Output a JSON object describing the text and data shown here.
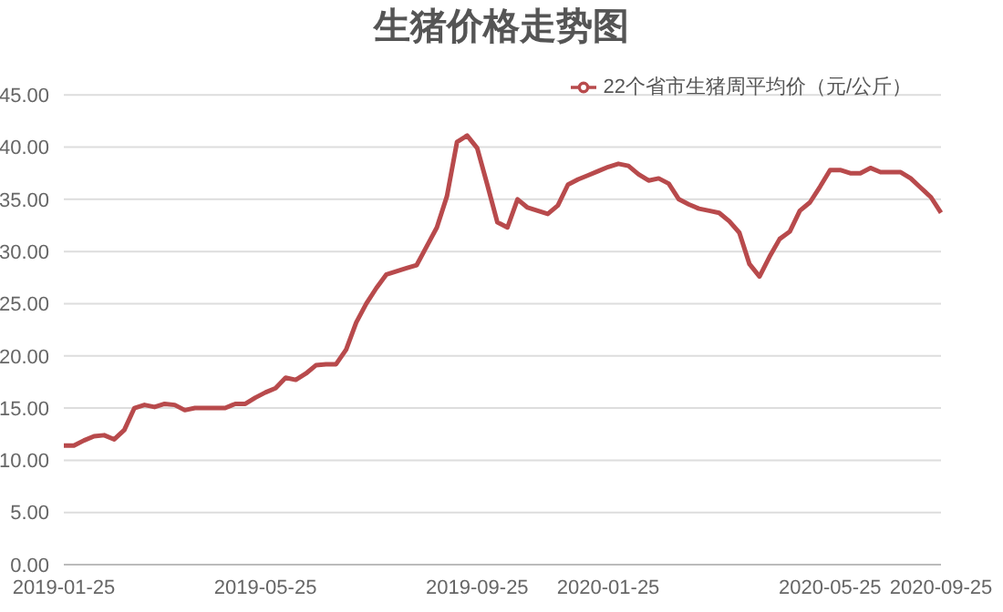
{
  "chart_data": {
    "type": "line",
    "title": "生猪价格走势图",
    "categories": [
      "2019-01-25",
      null,
      null,
      null,
      null,
      null,
      null,
      null,
      null,
      null,
      null,
      null,
      null,
      null,
      null,
      null,
      null,
      null,
      null,
      null,
      "2019-05-25",
      null,
      null,
      null,
      null,
      null,
      null,
      null,
      null,
      null,
      null,
      null,
      null,
      null,
      null,
      null,
      null,
      null,
      null,
      null,
      null,
      "2019-09-25",
      null,
      null,
      null,
      null,
      null,
      null,
      null,
      null,
      null,
      null,
      null,
      null,
      "2020-01-25",
      null,
      null,
      null,
      null,
      null,
      null,
      null,
      null,
      null,
      null,
      null,
      null,
      null,
      null,
      null,
      null,
      null,
      null,
      null,
      null,
      null,
      "2020-05-25",
      null,
      null,
      null,
      null,
      null,
      null,
      null,
      null,
      null,
      null,
      "2020-09-25"
    ],
    "series": [
      {
        "name": "22个省市生猪周平均价（元/公斤）",
        "color": "#b84a4c",
        "values": [
          11.4,
          11.4,
          11.9,
          12.3,
          12.4,
          12.0,
          12.9,
          15.0,
          15.3,
          15.1,
          15.4,
          15.3,
          14.8,
          15.0,
          15.0,
          15.0,
          15.0,
          15.4,
          15.4,
          16.0,
          16.5,
          16.9,
          17.9,
          17.7,
          18.3,
          19.1,
          19.2,
          19.2,
          20.6,
          23.2,
          25.0,
          26.5,
          27.8,
          28.1,
          28.4,
          28.7,
          30.5,
          32.3,
          35.3,
          40.5,
          41.1,
          39.9,
          36.4,
          32.8,
          32.3,
          35.0,
          34.2,
          33.9,
          33.6,
          34.4,
          36.4,
          36.9,
          37.3,
          37.7,
          38.1,
          38.4,
          38.2,
          37.4,
          36.8,
          37.0,
          36.5,
          35.0,
          34.5,
          34.1,
          33.9,
          33.7,
          32.9,
          31.8,
          28.8,
          27.6,
          29.5,
          31.2,
          31.9,
          33.9,
          34.7,
          36.2,
          37.8,
          37.8,
          37.5,
          37.5,
          38.0,
          37.6,
          37.6,
          37.6,
          37.0,
          36.1,
          35.2,
          33.7
        ]
      }
    ],
    "ylim": [
      0,
      45
    ],
    "yticks": [
      {
        "value": 0,
        "label": "0.00"
      },
      {
        "value": 5,
        "label": "5.00"
      },
      {
        "value": 10,
        "label": "10.00"
      },
      {
        "value": 15,
        "label": "15.00"
      },
      {
        "value": 20,
        "label": "20.00"
      },
      {
        "value": 25,
        "label": "25.00"
      },
      {
        "value": 30,
        "label": "30.00"
      },
      {
        "value": 35,
        "label": "35.00"
      },
      {
        "value": 40,
        "label": "40.00"
      },
      {
        "value": 45,
        "label": "45.00"
      }
    ],
    "grid": "y",
    "legend": "top right",
    "marker": "none",
    "line_style": "solid"
  }
}
